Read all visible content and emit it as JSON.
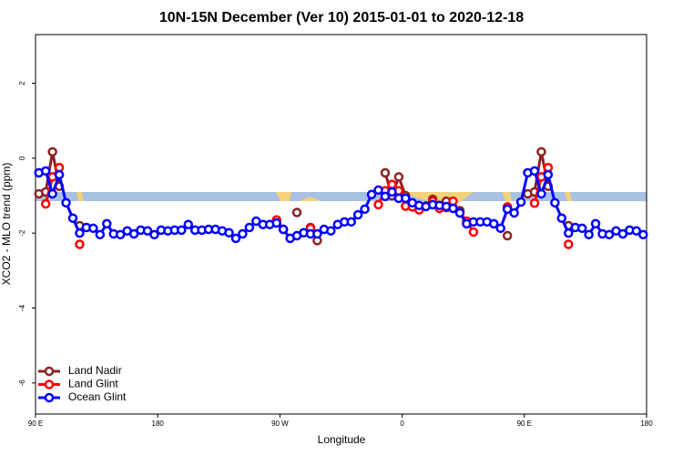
{
  "chart_data": {
    "type": "line",
    "title": "10N-15N December (Ver 10)   2015-01-01 to 2020-12-18",
    "x_label": "Longitude",
    "y_label": "XCO2 - MLO trend (ppm)",
    "xlim": [
      90,
      540
    ],
    "ylim": [
      -6.83,
      3.3
    ],
    "xticks": [
      {
        "value": 90,
        "label": "90 E"
      },
      180,
      {
        "value": 270,
        "label": "90 W"
      },
      {
        "value": 360,
        "label": "0"
      },
      {
        "value": 450,
        "label": "90 E"
      },
      {
        "value": 540,
        "label": "180"
      }
    ],
    "yticks": [
      2,
      0,
      -2,
      -4,
      -6
    ],
    "legend": "bottom-left",
    "x": [
      92.5,
      97.5,
      102.5,
      107.5,
      112.5,
      117.5,
      122.5,
      127.5,
      132.5,
      137.5,
      142.5,
      147.5,
      152.5,
      157.5,
      162.5,
      167.5,
      172.5,
      177.5,
      182.5,
      187.5,
      192.5,
      197.5,
      202.5,
      207.5,
      212.5,
      217.5,
      222.5,
      227.5,
      232.5,
      237.5,
      242.5,
      247.5,
      252.5,
      257.5,
      262.5,
      267.5,
      272.5,
      277.5,
      282.5,
      287.5,
      292.5,
      297.5,
      302.5,
      307.5,
      312.5,
      317.5,
      322.5,
      327.5,
      332.5,
      337.5,
      342.5,
      347.5,
      352.5,
      357.5,
      362.5,
      367.5,
      372.5,
      377.5,
      382.5,
      387.5,
      392.5,
      397.5,
      402.5,
      407.5,
      412.5,
      417.5,
      422.5,
      427.5,
      432.5,
      437.5,
      442.5,
      447.5,
      452.5,
      457.5,
      462.5,
      467.5,
      472.5,
      477.5,
      482.5,
      487.5,
      492.5,
      497.5,
      502.5,
      507.5,
      512.5,
      517.5,
      522.5,
      527.5,
      532.5,
      537.5
    ],
    "series": [
      {
        "name": "Land Nadir",
        "color": "#8b2323",
        "values": [
          -0.95,
          -0.9,
          0.17,
          -0.75,
          null,
          null,
          -1.8,
          null,
          null,
          null,
          null,
          null,
          null,
          null,
          null,
          null,
          null,
          null,
          null,
          null,
          null,
          null,
          null,
          null,
          null,
          null,
          null,
          null,
          null,
          null,
          null,
          null,
          null,
          null,
          null,
          -1.65,
          -1.9,
          null,
          -1.45,
          null,
          -1.85,
          -2.2,
          null,
          null,
          null,
          null,
          null,
          null,
          null,
          null,
          null,
          -0.39,
          -1.0,
          -0.5,
          -1.0,
          null,
          null,
          null,
          -1.1,
          null,
          -1.15,
          null,
          -1.4,
          null,
          null,
          null,
          null,
          null,
          null,
          -2.07,
          null,
          null,
          -0.95,
          -0.9,
          0.17,
          -0.75,
          null,
          null,
          -1.8,
          null,
          null,
          null,
          null,
          null,
          null,
          null,
          null,
          null,
          null,
          null
        ]
      },
      {
        "name": "Land Glint",
        "color": "#ff0000",
        "values": [
          null,
          -1.22,
          -0.5,
          -0.25,
          null,
          null,
          -2.3,
          null,
          null,
          null,
          null,
          null,
          null,
          null,
          null,
          null,
          null,
          null,
          null,
          null,
          null,
          null,
          null,
          null,
          null,
          null,
          null,
          null,
          null,
          null,
          null,
          null,
          null,
          null,
          null,
          -1.65,
          -1.9,
          null,
          null,
          null,
          -1.87,
          null,
          null,
          null,
          null,
          null,
          null,
          null,
          null,
          null,
          -1.24,
          -0.87,
          -0.7,
          -0.87,
          -1.28,
          -1.3,
          -1.38,
          -1.27,
          -1.15,
          -1.34,
          -1.32,
          -1.15,
          -1.46,
          -1.68,
          -1.97,
          null,
          null,
          null,
          null,
          -1.3,
          null,
          null,
          null,
          -1.2,
          -0.5,
          -0.25,
          null,
          null,
          -2.3,
          null,
          null,
          null,
          null,
          null,
          null,
          null,
          null,
          null,
          null,
          null
        ]
      },
      {
        "name": "Ocean Glint",
        "color": "#0000ff",
        "values": [
          -0.39,
          -0.34,
          -0.95,
          -0.44,
          -1.19,
          -1.6,
          -2.0,
          -1.85,
          -1.87,
          -2.04,
          -1.75,
          -2.02,
          -2.04,
          -1.94,
          -2.02,
          -1.92,
          -1.94,
          -2.04,
          -1.92,
          -1.94,
          -1.92,
          -1.92,
          -1.77,
          -1.92,
          -1.92,
          -1.9,
          -1.9,
          -1.94,
          -1.99,
          -2.14,
          -2.02,
          -1.85,
          -1.68,
          -1.77,
          -1.77,
          -1.73,
          -1.9,
          -2.14,
          -2.07,
          -1.99,
          -2.02,
          -2.02,
          -1.9,
          -1.94,
          -1.77,
          -1.7,
          -1.7,
          -1.51,
          -1.36,
          -0.97,
          -0.85,
          -1.02,
          -0.9,
          -1.07,
          -1.07,
          -1.19,
          -1.26,
          -1.29,
          -1.24,
          -1.26,
          -1.29,
          -1.34,
          -1.46,
          -1.75,
          -1.7,
          -1.7,
          -1.7,
          -1.75,
          -1.87,
          -1.36,
          -1.46,
          -1.17,
          -0.39,
          -0.34,
          -0.95,
          -0.44,
          -1.19,
          -1.6,
          -2.0,
          -1.85,
          -1.87,
          -2.04,
          -1.75,
          -2.02,
          -2.04,
          -1.94,
          -2.02,
          -1.92,
          -1.94,
          -2.04
        ]
      }
    ]
  }
}
